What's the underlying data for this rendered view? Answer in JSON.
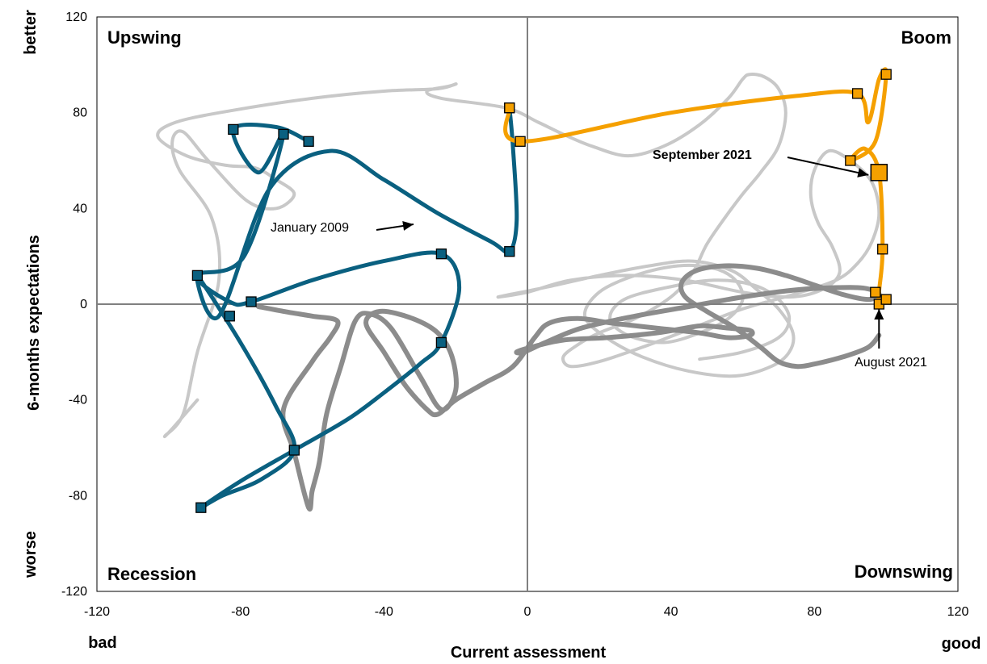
{
  "chart_data": {
    "type": "line",
    "title": "",
    "xlabel": "Current assessment",
    "ylabel": "6-months expectations",
    "xlim": [
      -120,
      120
    ],
    "ylim": [
      -120,
      120
    ],
    "x_ticks": [
      -120,
      -80,
      -40,
      0,
      40,
      80,
      120
    ],
    "y_ticks": [
      -120,
      -80,
      -40,
      0,
      40,
      80,
      120
    ],
    "x_ends": {
      "left": "bad",
      "right": "good"
    },
    "y_ends": {
      "top": "better",
      "bottom": "worse"
    },
    "quadrants": {
      "top_left": "Upswing",
      "top_right": "Boom",
      "bottom_left": "Recession",
      "bottom_right": "Downswing"
    },
    "annotations": {
      "jan_2009": "January 2009",
      "sep_2021": "September 2021",
      "aug_2021": "August 2021"
    },
    "colors": {
      "background_light": "#c8c8c8",
      "background_dark": "#8c8c8c",
      "crisis": "#0a6080",
      "recent": "#f5a000",
      "axis": "#808080"
    },
    "series": [
      {
        "role": "background-light",
        "x": [
          -92,
          -99,
          -101,
          -96,
          -92,
          -86,
          -88,
          -97,
          -99,
          -96,
          -89,
          -78,
          -70,
          -65,
          -70,
          -76,
          -84,
          -95,
          -103,
          -98,
          -82,
          -60,
          -40,
          -25,
          -20,
          -22,
          -28,
          -24,
          -6,
          3,
          10,
          18,
          28,
          38,
          48,
          56,
          60,
          62,
          66,
          70,
          72,
          70,
          65,
          60,
          55,
          50,
          46,
          40,
          30,
          20,
          14,
          10,
          12,
          20,
          32,
          46,
          60,
          74,
          86,
          92,
          96,
          98,
          96,
          90,
          84,
          80,
          79,
          81,
          85,
          87,
          82,
          73,
          60,
          44,
          28,
          12,
          0,
          -8,
          -5,
          5,
          20,
          34,
          46,
          57,
          64,
          70,
          74,
          73,
          68,
          58,
          45,
          32,
          22,
          16,
          20,
          30,
          42,
          52,
          58,
          60,
          56,
          48,
          38,
          28,
          23,
          27,
          39,
          52,
          63,
          70,
          73,
          70,
          60,
          48
        ],
        "y": [
          -40,
          -52,
          -55,
          -46,
          -20,
          10,
          36,
          56,
          68,
          72,
          60,
          43,
          40,
          46,
          52,
          57,
          58,
          62,
          70,
          76,
          81,
          86,
          89,
          90,
          92,
          91,
          89,
          86,
          82,
          76,
          71,
          66,
          62,
          66,
          75,
          86,
          94,
          96,
          95,
          90,
          80,
          66,
          55,
          46,
          36,
          25,
          13,
          3,
          -6,
          -12,
          -17,
          -22,
          -26,
          -24,
          -18,
          -10,
          -2,
          4,
          10,
          17,
          26,
          38,
          51,
          60,
          64,
          56,
          45,
          34,
          24,
          13,
          6,
          3,
          5,
          10,
          12,
          10,
          5,
          3,
          4,
          7,
          12,
          16,
          18,
          14,
          6,
          -2,
          -12,
          -20,
          -26,
          -30,
          -28,
          -22,
          -14,
          -5,
          5,
          12,
          16,
          15,
          10,
          2,
          -6,
          -12,
          -16,
          -13,
          -6,
          2,
          7,
          10,
          8,
          2,
          -6,
          -14,
          -20,
          -23
        ]
      },
      {
        "role": "background-dark",
        "x": [
          -75,
          -68,
          -60,
          -53,
          -55,
          -60,
          -68,
          -65,
          -61,
          -60,
          -58,
          -56,
          -52,
          -48,
          -44,
          -38,
          -30,
          -24,
          -20,
          -21,
          -25,
          -32,
          -41,
          -45,
          -40,
          -34,
          -28,
          -25,
          -20,
          -12,
          -4,
          2,
          6,
          14,
          24,
          36,
          48,
          56,
          62,
          62,
          56,
          49,
          44,
          36,
          22,
          10,
          1,
          -3,
          -1,
          5,
          15,
          30,
          45,
          60,
          75,
          90,
          96,
          98,
          95,
          88,
          80,
          72,
          64,
          55,
          47,
          43,
          44,
          50,
          58,
          65,
          70,
          75,
          80,
          88,
          95,
          98
        ],
        "y": [
          -1,
          -3,
          -5,
          -7,
          -14,
          -24,
          -44,
          -62,
          -85,
          -78,
          -66,
          -46,
          -26,
          -7,
          -4,
          -10,
          -30,
          -44,
          -36,
          -22,
          -12,
          -6,
          -3,
          -8,
          -20,
          -34,
          -44,
          -46,
          -40,
          -33,
          -26,
          -14,
          -8,
          -6,
          -8,
          -10,
          -12,
          -14,
          -13,
          -11,
          -10,
          -9,
          -10,
          -12,
          -14,
          -15,
          -18,
          -20,
          -20,
          -16,
          -10,
          -5,
          -1,
          3,
          6,
          7,
          6,
          4,
          2,
          4,
          8,
          12,
          15,
          16,
          14,
          9,
          3,
          -3,
          -10,
          -18,
          -24,
          -26,
          -25,
          -22,
          -18,
          -13
        ]
      },
      {
        "role": "crisis",
        "x": [
          -61,
          -70,
          -82,
          -75,
          -68,
          -79,
          -92,
          -83,
          -77,
          -60,
          -40,
          -24,
          -19,
          -24,
          -30,
          -40,
          -50,
          -65,
          -80,
          -91,
          -85,
          -74,
          -65,
          -70,
          -80,
          -92,
          -86,
          -72,
          -55,
          -40,
          -25,
          -10,
          -5,
          -3,
          -4,
          -5
        ],
        "y": [
          68,
          74,
          73,
          55,
          71,
          20,
          12,
          1,
          1,
          10,
          18,
          21,
          7,
          -16,
          -25,
          -37,
          -48,
          -61,
          -74,
          -85,
          -80,
          -73,
          -61,
          -43,
          -16,
          12,
          -5,
          48,
          64,
          52,
          38,
          26,
          22,
          35,
          65,
          82
        ],
        "markers_x": [
          -61,
          -68,
          -82,
          -92,
          -83,
          -77,
          -24,
          -24,
          -65,
          -91,
          -5,
          -5
        ],
        "markers_y": [
          68,
          71,
          73,
          12,
          -5,
          1,
          21,
          -16,
          -61,
          -85,
          22,
          82
        ]
      },
      {
        "role": "recent",
        "x": [
          -5,
          -2,
          40,
          75,
          92,
          95,
          98,
          100,
          97,
          90,
          94,
          98,
          99,
          98,
          98,
          99,
          100
        ],
        "y": [
          82,
          68,
          80,
          87,
          88,
          76,
          94,
          96,
          68,
          60,
          65,
          55,
          23,
          5,
          0,
          2,
          2
        ],
        "markers_x": [
          -5,
          -2,
          92,
          100,
          90,
          99,
          97,
          98,
          100
        ],
        "markers_y": [
          82,
          68,
          88,
          96,
          60,
          23,
          5,
          0,
          2
        ],
        "highlight": {
          "x": 98,
          "y": 55
        }
      }
    ]
  }
}
